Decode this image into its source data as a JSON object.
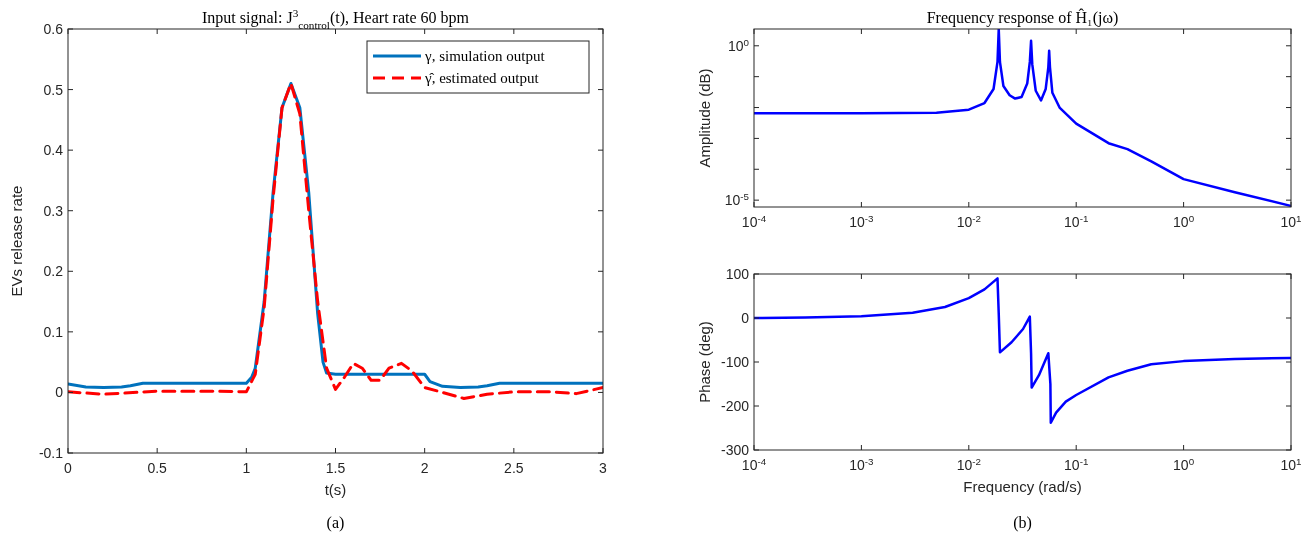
{
  "chart_data": [
    {
      "type": "line",
      "title": "Input signal: J$^{3}$$_{control}$(t), Heart rate 60 bpm",
      "xlabel": "t(s)",
      "ylabel": "EVs release rate",
      "xlim": [
        0,
        3
      ],
      "ylim": [
        -0.1,
        0.6
      ],
      "xticks": [
        0,
        0.5,
        1,
        1.5,
        2,
        2.5,
        3
      ],
      "yticks": [
        -0.1,
        0,
        0.1,
        0.2,
        0.3,
        0.4,
        0.5,
        0.6
      ],
      "legend": "top right",
      "grid": false,
      "annotations": [
        "(a)"
      ],
      "series": [
        {
          "name": "γ, simulation output",
          "color": "#0072bd",
          "line_style": "solid",
          "x": [
            0,
            0.1,
            0.2,
            0.3,
            0.35,
            0.42,
            1.0,
            1.03,
            1.05,
            1.1,
            1.15,
            1.2,
            1.25,
            1.3,
            1.35,
            1.4,
            1.43,
            1.45,
            1.5,
            1.98,
            2.0,
            2.03,
            2.1,
            2.2,
            2.3,
            2.35,
            2.42,
            3
          ],
          "values": [
            0.014,
            0.009,
            0.008,
            0.009,
            0.011,
            0.015,
            0.015,
            0.025,
            0.04,
            0.15,
            0.33,
            0.47,
            0.51,
            0.47,
            0.33,
            0.13,
            0.05,
            0.032,
            0.03,
            0.03,
            0.03,
            0.018,
            0.01,
            0.008,
            0.009,
            0.011,
            0.015,
            0.015
          ]
        },
        {
          "name": "γ̂, estimated output",
          "color": "#ff0000",
          "line_style": "dashed",
          "x": [
            0,
            0.2,
            0.5,
            0.8,
            1.0,
            1.05,
            1.1,
            1.15,
            1.2,
            1.25,
            1.3,
            1.35,
            1.4,
            1.45,
            1.5,
            1.55,
            1.6,
            1.65,
            1.7,
            1.75,
            1.8,
            1.87,
            1.93,
            2.0,
            2.1,
            2.22,
            2.35,
            2.5,
            2.7,
            2.85,
            3
          ],
          "values": [
            0.001,
            -0.003,
            0.002,
            0.002,
            0.001,
            0.03,
            0.14,
            0.32,
            0.47,
            0.51,
            0.46,
            0.3,
            0.15,
            0.04,
            0.005,
            0.025,
            0.048,
            0.04,
            0.02,
            0.02,
            0.04,
            0.048,
            0.035,
            0.008,
            0,
            -0.01,
            -0.003,
            0.001,
            0.001,
            -0.002,
            0.008
          ]
        }
      ]
    },
    {
      "type": "line",
      "title": "Frequency response of Ĥ₁(jω)",
      "ylabel": "Amplitude (dB)",
      "log": "xy",
      "xlim": [
        0.0001,
        10
      ],
      "ylim": [
        6e-06,
        3.5
      ],
      "grid": false,
      "xticks": [
        {
          "value": 0.0001,
          "label": "10$^{-4}$"
        },
        {
          "value": 0.001,
          "label": "10$^{-3}$"
        },
        {
          "value": 0.01,
          "label": "10$^{-2}$"
        },
        {
          "value": 0.1,
          "label": "10$^{-1}$"
        },
        {
          "value": 1,
          "label": "10$^{0}$"
        },
        {
          "value": 10,
          "label": "10$^{1}$"
        }
      ],
      "yticks": [
        {
          "value": 1e-05,
          "label": "10$^{-5}$"
        },
        {
          "value": 0.0001,
          "label": null
        },
        {
          "value": 0.001,
          "label": null
        },
        {
          "value": 0.01,
          "label": null
        },
        {
          "value": 0.1,
          "label": null
        },
        {
          "value": 1,
          "label": "10$^{0}$"
        }
      ],
      "series": [
        {
          "color": "#0000ff",
          "x": [
            0.0001,
            0.001,
            0.005,
            0.01,
            0.014,
            0.017,
            0.0185,
            0.019,
            0.0195,
            0.021,
            0.024,
            0.027,
            0.031,
            0.035,
            0.037,
            0.038,
            0.039,
            0.042,
            0.047,
            0.052,
            0.055,
            0.056,
            0.057,
            0.06,
            0.07,
            0.1,
            0.2,
            0.3,
            0.5,
            1,
            3,
            10
          ],
          "values": [
            0.0065,
            0.0065,
            0.0068,
            0.0085,
            0.014,
            0.04,
            0.3,
            3.5,
            0.3,
            0.05,
            0.025,
            0.0195,
            0.022,
            0.06,
            0.3,
            1.45,
            0.25,
            0.035,
            0.017,
            0.04,
            0.2,
            0.69,
            0.2,
            0.03,
            0.01,
            0.003,
            0.0007,
            0.00045,
            0.00018,
            4.8e-05,
            1.8e-05,
            6.5e-06
          ]
        }
      ]
    },
    {
      "type": "line",
      "xlabel": "Frequency (rad/s)",
      "ylabel": "Phase (deg)",
      "log": "x",
      "xlim": [
        0.0001,
        10
      ],
      "ylim": [
        -300,
        100
      ],
      "grid": false,
      "annotations": [
        "(b)"
      ],
      "xticks": [
        {
          "value": 0.0001,
          "label": "10$^{-4}$"
        },
        {
          "value": 0.001,
          "label": "10$^{-3}$"
        },
        {
          "value": 0.01,
          "label": "10$^{-2}$"
        },
        {
          "value": 0.1,
          "label": "10$^{-1}$"
        },
        {
          "value": 1,
          "label": "10$^{0}$"
        },
        {
          "value": 10,
          "label": "10$^{1}$"
        }
      ],
      "yticks": [
        -300,
        -200,
        -100,
        0,
        100
      ],
      "series": [
        {
          "color": "#0000ff",
          "x": [
            0.0001,
            0.0003,
            0.001,
            0.003,
            0.006,
            0.01,
            0.014,
            0.0185,
            0.019,
            0.0195,
            0.025,
            0.032,
            0.037,
            0.038,
            0.0385,
            0.045,
            0.055,
            0.0575,
            0.058,
            0.065,
            0.08,
            0.1,
            0.2,
            0.3,
            0.5,
            1,
            3,
            10
          ],
          "values": [
            0,
            1,
            4,
            12,
            25,
            45,
            65,
            90,
            10,
            -78,
            -55,
            -25,
            3,
            -80,
            -158,
            -130,
            -80,
            -150,
            -238,
            -215,
            -190,
            -175,
            -135,
            -120,
            -105,
            -98,
            -93,
            -91
          ]
        }
      ]
    }
  ]
}
